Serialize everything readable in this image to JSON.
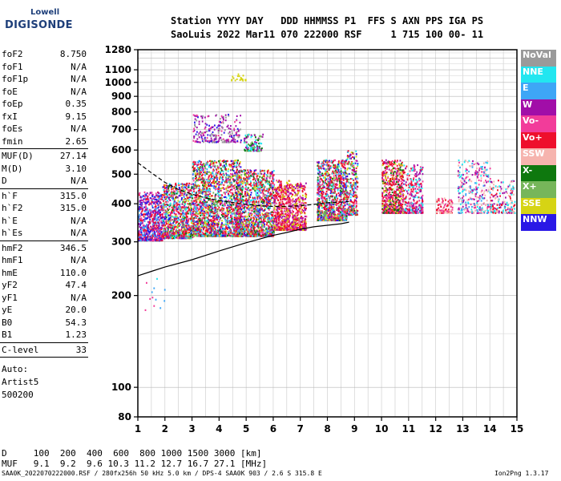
{
  "logo": {
    "line1": "Lowell",
    "line2": "DIGISONDE"
  },
  "header": {
    "line1": "Station YYYY DAY   DDD HHMMSS P1  FFS S AXN PPS IGA PS",
    "line2": "SaoLuis 2022 Mar11 070 222000 RSF     1 715 100 00- 11"
  },
  "params": [
    {
      "label": "foF2",
      "value": "8.750"
    },
    {
      "label": "foF1",
      "value": "N/A"
    },
    {
      "label": "foF1p",
      "value": "N/A"
    },
    {
      "label": "foE",
      "value": "N/A"
    },
    {
      "label": "foEp",
      "value": "0.35"
    },
    {
      "label": "fxI",
      "value": "9.15"
    },
    {
      "label": "foEs",
      "value": "N/A"
    },
    {
      "label": "fmin",
      "value": "2.65"
    },
    {
      "sep": true
    },
    {
      "label": "MUF(D)",
      "value": "27.14"
    },
    {
      "label": "M(D)",
      "value": "3.10"
    },
    {
      "label": "D",
      "value": "N/A"
    },
    {
      "sep": true
    },
    {
      "label": "h`F",
      "value": "315.0"
    },
    {
      "label": "h`F2",
      "value": "315.0"
    },
    {
      "label": "h`E",
      "value": "N/A"
    },
    {
      "label": "h`Es",
      "value": "N/A"
    },
    {
      "sep": true
    },
    {
      "label": "hmF2",
      "value": "346.5"
    },
    {
      "label": "hmF1",
      "value": "N/A"
    },
    {
      "label": "hmE",
      "value": "110.0"
    },
    {
      "label": "yF2",
      "value": "47.4"
    },
    {
      "label": "yF1",
      "value": "N/A"
    },
    {
      "label": "yE",
      "value": "20.0"
    },
    {
      "label": "B0",
      "value": "54.3"
    },
    {
      "label": "B1",
      "value": "1.23"
    },
    {
      "sep": true
    },
    {
      "label": "C-level",
      "value": "33"
    },
    {
      "sep": true
    }
  ],
  "auto": {
    "l1": "Auto:",
    "l2": "Artist5",
    "l3": "500200"
  },
  "legend": [
    {
      "label": "NoVal",
      "color": "#9a9a9a"
    },
    {
      "label": "NNE",
      "color": "#22e6f0"
    },
    {
      "label": "E",
      "color": "#3ea6f6"
    },
    {
      "label": "W",
      "color": "#a10ea8"
    },
    {
      "label": "Vo-",
      "color": "#f23c9a"
    },
    {
      "label": "Vo+",
      "color": "#ee0f2c"
    },
    {
      "label": "SSW",
      "color": "#f6b4ae"
    },
    {
      "label": "X-",
      "color": "#0e780e"
    },
    {
      "label": "X+",
      "color": "#76b65a"
    },
    {
      "label": "SSE",
      "color": "#d6d414"
    },
    {
      "label": "NNW",
      "color": "#2a18e6"
    }
  ],
  "bottom": {
    "row1": "D     100  200  400  600  800 1000 1500 3000 [km]",
    "row2": "MUF   9.1  9.2  9.6 10.3 11.2 12.7 16.7 27.1 [MHz]"
  },
  "footer": {
    "left": "SAA0K_2022070222000.RSF / 280fx256h 50 kHz 5.0 km / DPS-4 SAA0K 903 / 2.6 S 315.8 E",
    "right": "Ion2Png 1.3.17"
  },
  "chart_data": {
    "type": "scatter",
    "title": "",
    "xlabel": "",
    "ylabel": "",
    "xlim": [
      1,
      15
    ],
    "ylim": [
      80,
      1280
    ],
    "yscale": "log",
    "x_ticks": [
      1,
      2,
      3,
      4,
      5,
      6,
      7,
      8,
      9,
      10,
      11,
      12,
      13,
      14,
      15
    ],
    "y_ticks": [
      80,
      100,
      200,
      300,
      400,
      500,
      600,
      700,
      800,
      900,
      1000,
      1100,
      1280
    ],
    "grid": true,
    "legend_position": "right",
    "series": [
      {
        "name": "trace",
        "x": [
          1.0,
          1.5,
          2.0,
          3.0,
          4.0,
          5.0,
          6.0,
          6.5,
          7.0,
          7.5,
          8.0,
          8.5,
          8.8
        ],
        "y": [
          232,
          240,
          248,
          262,
          280,
          298,
          315,
          322,
          330,
          336,
          340,
          344,
          348
        ]
      },
      {
        "name": "trace-upper",
        "x": [
          1.0,
          1.5,
          2.0,
          2.5,
          3.0,
          3.5,
          4.0,
          4.5,
          5.0,
          5.5,
          6.0,
          6.5,
          7.0,
          7.5,
          8.0,
          8.5,
          8.8
        ],
        "y": [
          545,
          505,
          470,
          445,
          430,
          418,
          410,
          404,
          398,
          394,
          392,
          392,
          394,
          398,
          403,
          405,
          407
        ]
      }
    ]
  }
}
